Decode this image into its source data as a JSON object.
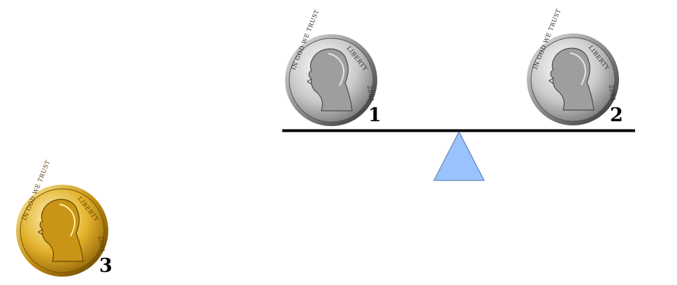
{
  "colors": {
    "background": "#ffffff",
    "beam": "#000000",
    "fulcrum_fill": "#99c2ff",
    "fulcrum_stroke": "#5577aa",
    "silver_light": "#f4f4f4",
    "silver_mid": "#b0b0b0",
    "silver_dark": "#3a3a3a",
    "gold_light": "#fff2a8",
    "gold_mid": "#d6a418",
    "gold_dark": "#7a5200"
  },
  "coins": [
    {
      "id": "coin-1",
      "label": "1",
      "metal": "silver",
      "motto": "IN GOD WE TRUST",
      "legend": "LIBERTY",
      "year": "2004",
      "on_scale": true
    },
    {
      "id": "coin-2",
      "label": "2",
      "metal": "silver",
      "motto": "IN GOD WE TRUST",
      "legend": "LIBERTY",
      "year": "2004",
      "on_scale": true
    },
    {
      "id": "coin-3",
      "label": "3",
      "metal": "gold",
      "motto": "IN GOD WE TRUST",
      "legend": "LIBERTY",
      "year": "2004",
      "on_scale": false
    }
  ]
}
